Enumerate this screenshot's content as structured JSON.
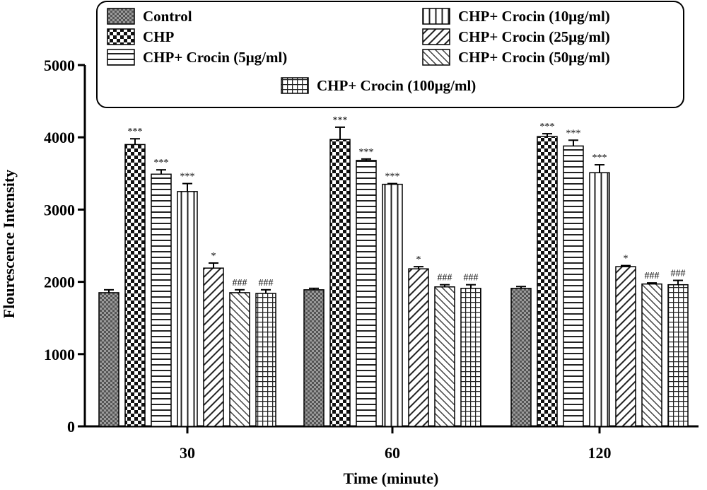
{
  "chart_data": {
    "type": "bar",
    "xlabel": "Time (minute)",
    "ylabel": "Flourescence Intensity",
    "ylim": [
      0,
      5000
    ],
    "yticks": [
      0,
      1000,
      2000,
      3000,
      4000,
      5000
    ],
    "categories": [
      "30",
      "60",
      "120"
    ],
    "legend_position": "top",
    "series": [
      {
        "name": "Control",
        "pattern": "dark-checker",
        "values": [
          1850,
          1890,
          1910
        ],
        "errors": [
          40,
          20,
          25
        ],
        "sig": [
          "",
          "",
          ""
        ]
      },
      {
        "name": "CHP",
        "pattern": "diamond-check",
        "values": [
          3900,
          3970,
          4010
        ],
        "errors": [
          80,
          170,
          40
        ],
        "sig": [
          "***",
          "***",
          "***"
        ]
      },
      {
        "name": "CHP+ Crocin (5μg/ml)",
        "pattern": "horizontal-lines",
        "values": [
          3490,
          3680,
          3880
        ],
        "errors": [
          60,
          20,
          80
        ],
        "sig": [
          "***",
          "***",
          "***"
        ]
      },
      {
        "name": "CHP+ Crocin (10μg/ml)",
        "pattern": "vertical-lines",
        "values": [
          3250,
          3350,
          3510
        ],
        "errors": [
          110,
          10,
          110
        ],
        "sig": [
          "***",
          "***",
          "***"
        ]
      },
      {
        "name": "CHP+ Crocin (25μg/ml)",
        "pattern": "diagonal-right",
        "values": [
          2190,
          2180,
          2210
        ],
        "errors": [
          70,
          30,
          15
        ],
        "sig": [
          "*",
          "*",
          "*"
        ]
      },
      {
        "name": "CHP+ Crocin (50μg/ml)",
        "pattern": "diagonal-left",
        "values": [
          1850,
          1930,
          1970
        ],
        "errors": [
          40,
          30,
          15
        ],
        "sig": [
          "###",
          "###",
          "###"
        ]
      },
      {
        "name": "CHP+ Crocin (100μg/ml)",
        "pattern": "grid",
        "values": [
          1840,
          1910,
          1960
        ],
        "errors": [
          50,
          50,
          60
        ],
        "sig": [
          "###",
          "###",
          "###"
        ]
      }
    ]
  }
}
